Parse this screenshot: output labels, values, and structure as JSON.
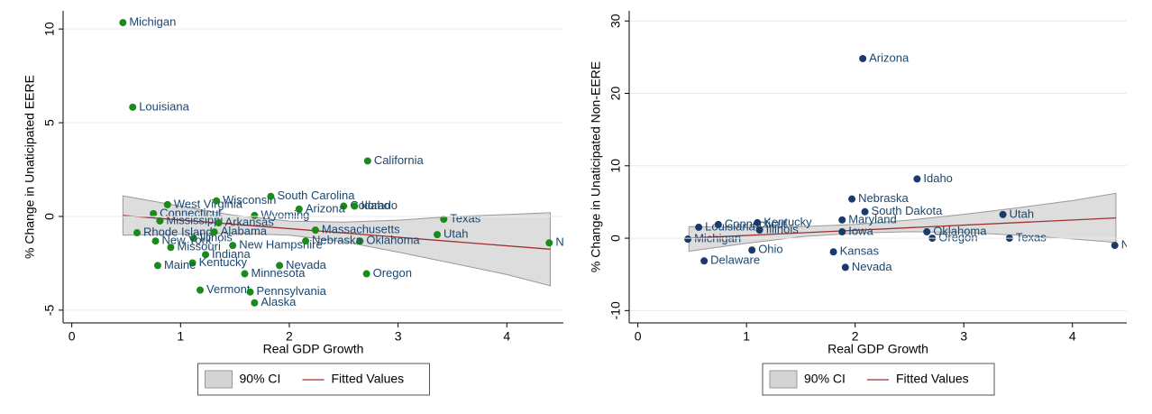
{
  "chart_data": [
    {
      "type": "scatter",
      "x_label": "Real GDP Growth",
      "y_label": "% Change in Unaticipated EERE",
      "xlim": [
        -0.08,
        4.52
      ],
      "ylim": [
        -5.68,
        10.97
      ],
      "xticks": [
        0,
        1,
        2,
        3,
        4
      ],
      "yticks": [
        -5,
        0,
        5,
        10
      ],
      "grid": true,
      "points": {
        "color": "#1a8a1a",
        "labels": [
          "Michigan",
          "Louisiana",
          "California",
          "West Virginia",
          "Wisconsin",
          "South Carolina",
          "Colorado",
          "Idaho",
          "Arizona",
          "Connecticut",
          "Wyoming",
          "Texas",
          "Utah",
          "Oklahoma",
          "Massachusetts",
          "Illinois",
          "New York",
          "Missouri",
          "New Hampshire",
          "Indiana",
          "Kentucky",
          "Maine",
          "Nevada",
          "Minnesota",
          "Oregon",
          "Vermont",
          "Pennsylvania",
          "Alaska",
          "North Dakota",
          "Mississippi",
          "Arkansas",
          "Rhode Island",
          "Alabama",
          "Nebraska"
        ],
        "x": [
          0.47,
          0.56,
          2.72,
          0.88,
          1.33,
          1.83,
          2.5,
          2.6,
          2.09,
          0.75,
          1.68,
          3.42,
          3.36,
          2.65,
          2.24,
          1.12,
          0.77,
          0.91,
          1.48,
          1.23,
          1.11,
          0.79,
          1.91,
          1.59,
          2.71,
          1.18,
          1.64,
          1.68,
          4.39,
          0.81,
          1.35,
          0.6,
          1.31,
          2.15
        ],
        "y": [
          10.34,
          5.83,
          2.96,
          0.63,
          0.83,
          1.07,
          0.55,
          0.55,
          0.39,
          0.15,
          0.05,
          -0.15,
          -0.97,
          -1.31,
          -0.73,
          -1.17,
          -1.31,
          -1.65,
          -1.55,
          -2.04,
          -2.48,
          -2.62,
          -2.62,
          -3.06,
          -3.06,
          -3.93,
          -4.03,
          -4.61,
          -1.41,
          -0.24,
          -0.34,
          -0.87,
          -0.83,
          -1.31
        ]
      },
      "ci": {
        "name": "90% CI",
        "color": "#d4d4d4",
        "x": [
          0.47,
          1.0,
          1.5,
          2.0,
          2.5,
          3.0,
          3.5,
          4.0,
          4.4
        ],
        "upper": [
          1.1,
          0.55,
          0.05,
          -0.25,
          -0.3,
          -0.2,
          0.0,
          0.1,
          0.2
        ],
        "lower": [
          -1.0,
          -0.95,
          -0.9,
          -1.0,
          -1.35,
          -1.9,
          -2.5,
          -3.1,
          -3.7
        ]
      },
      "fit": {
        "name": "Fitted Values",
        "color": "#a03030",
        "x": [
          0.47,
          4.4
        ],
        "values": [
          0.05,
          -1.75
        ]
      }
    },
    {
      "type": "scatter",
      "x_label": "Real GDP Growth",
      "y_label": "% Change in Unaticipated Non-EERE",
      "xlim": [
        -0.08,
        4.5
      ],
      "ylim": [
        -11.7,
        31.4
      ],
      "xticks": [
        0,
        1,
        2,
        3,
        4
      ],
      "yticks": [
        -10,
        0,
        10,
        20,
        30
      ],
      "grid": true,
      "points": {
        "color": "#1a3a6b",
        "labels": [
          "Arizona",
          "Idaho",
          "Nebraska",
          "South Dakota",
          "Maryland",
          "Utah",
          "Connecticut",
          "Kentucky",
          "Louisiana",
          "Michigan",
          "Texas",
          "Oregon",
          "Oklahoma",
          "North Dakota",
          "Ohio",
          "Delaware",
          "Nevada",
          "Kansas",
          "Iowa",
          "Illinois"
        ],
        "x": [
          2.07,
          2.57,
          1.97,
          2.09,
          1.88,
          3.36,
          0.74,
          1.1,
          0.56,
          0.46,
          3.42,
          2.71,
          2.66,
          4.39,
          1.05,
          0.61,
          1.91,
          1.8,
          1.88,
          1.12
        ],
        "y": [
          24.8,
          8.18,
          5.41,
          3.65,
          2.52,
          3.27,
          1.89,
          2.14,
          1.51,
          -0.13,
          0,
          0,
          0.88,
          -1.0,
          -1.64,
          -3.14,
          -4.03,
          -1.89,
          0.88,
          1.13
        ]
      },
      "ci": {
        "name": "90% CI",
        "color": "#d4d4d4",
        "x": [
          0.47,
          1.0,
          1.5,
          2.0,
          2.5,
          3.0,
          3.5,
          4.0,
          4.4
        ],
        "upper": [
          1.6,
          1.5,
          1.6,
          1.9,
          2.5,
          3.3,
          4.2,
          5.2,
          6.2
        ],
        "lower": [
          -1.8,
          -0.7,
          0.2,
          0.7,
          0.9,
          0.8,
          0.4,
          -0.1,
          -0.6
        ]
      },
      "fit": {
        "name": "Fitted Values",
        "color": "#a03030",
        "x": [
          0.47,
          4.4
        ],
        "values": [
          0.0,
          2.8
        ]
      }
    }
  ]
}
